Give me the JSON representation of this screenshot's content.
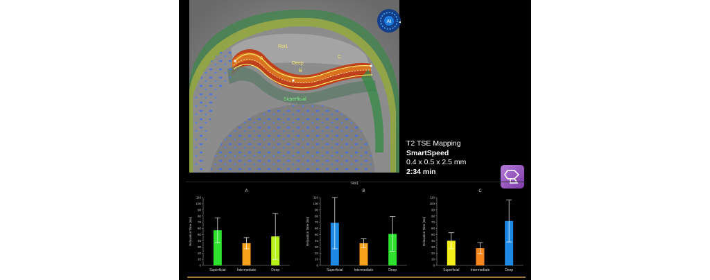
{
  "scan": {
    "sequence": "T2 TSE Mapping",
    "technique": "SmartSpeed",
    "resolution": "0.4 x 0.5 x 2.5 mm",
    "duration": "2:34 min"
  },
  "overlay": {
    "roi": "Roi1",
    "layer_deep": "Deep",
    "layer_superficial": "Superficial",
    "point_a": "A",
    "point_b": "B",
    "point_c": "C"
  },
  "app_icon": {
    "name": "brain-scan-icon",
    "label": "AI"
  },
  "brand_icon": {
    "name": "smartspeed-logo-icon"
  },
  "panel_title": "Roi1",
  "y_axis_label": "Relaxation Time [ms]",
  "y_ticks": [
    0,
    10,
    20,
    30,
    40,
    50,
    60,
    70,
    80,
    90,
    100,
    110
  ],
  "colors": {
    "superficial_green": "#2fe22f",
    "intermediate_orange": "#f7a21a",
    "deep_lime": "#b6f215",
    "blue": "#1e88e5",
    "yellow": "#f4ee1a",
    "orange": "#f6861c"
  },
  "chart_data": [
    {
      "type": "bar",
      "title": "A",
      "ylabel": "Relaxation Time [ms]",
      "ylim": [
        0,
        110
      ],
      "categories": [
        "Superficial",
        "Intermediate",
        "Deep"
      ],
      "values": [
        57,
        36,
        47
      ],
      "errors": [
        20,
        9,
        37
      ],
      "colors": [
        "#2fe22f",
        "#f7a21a",
        "#b6f215"
      ]
    },
    {
      "type": "bar",
      "title": "B",
      "ylabel": "Relaxation Time [ms]",
      "ylim": [
        0,
        110
      ],
      "categories": [
        "Superficial",
        "Intermediate",
        "Deep"
      ],
      "values": [
        69,
        36,
        51
      ],
      "errors": [
        42,
        7,
        28
      ],
      "colors": [
        "#1e88e5",
        "#f7a21a",
        "#2fe22f"
      ]
    },
    {
      "type": "bar",
      "title": "C",
      "ylabel": "Relaxation Time [ms]",
      "ylim": [
        0,
        110
      ],
      "categories": [
        "Superficial",
        "Intermediate",
        "Deep"
      ],
      "values": [
        40,
        28,
        72
      ],
      "errors": [
        13,
        9,
        34
      ],
      "colors": [
        "#f4ee1a",
        "#f6861c",
        "#1e88e5"
      ]
    }
  ]
}
